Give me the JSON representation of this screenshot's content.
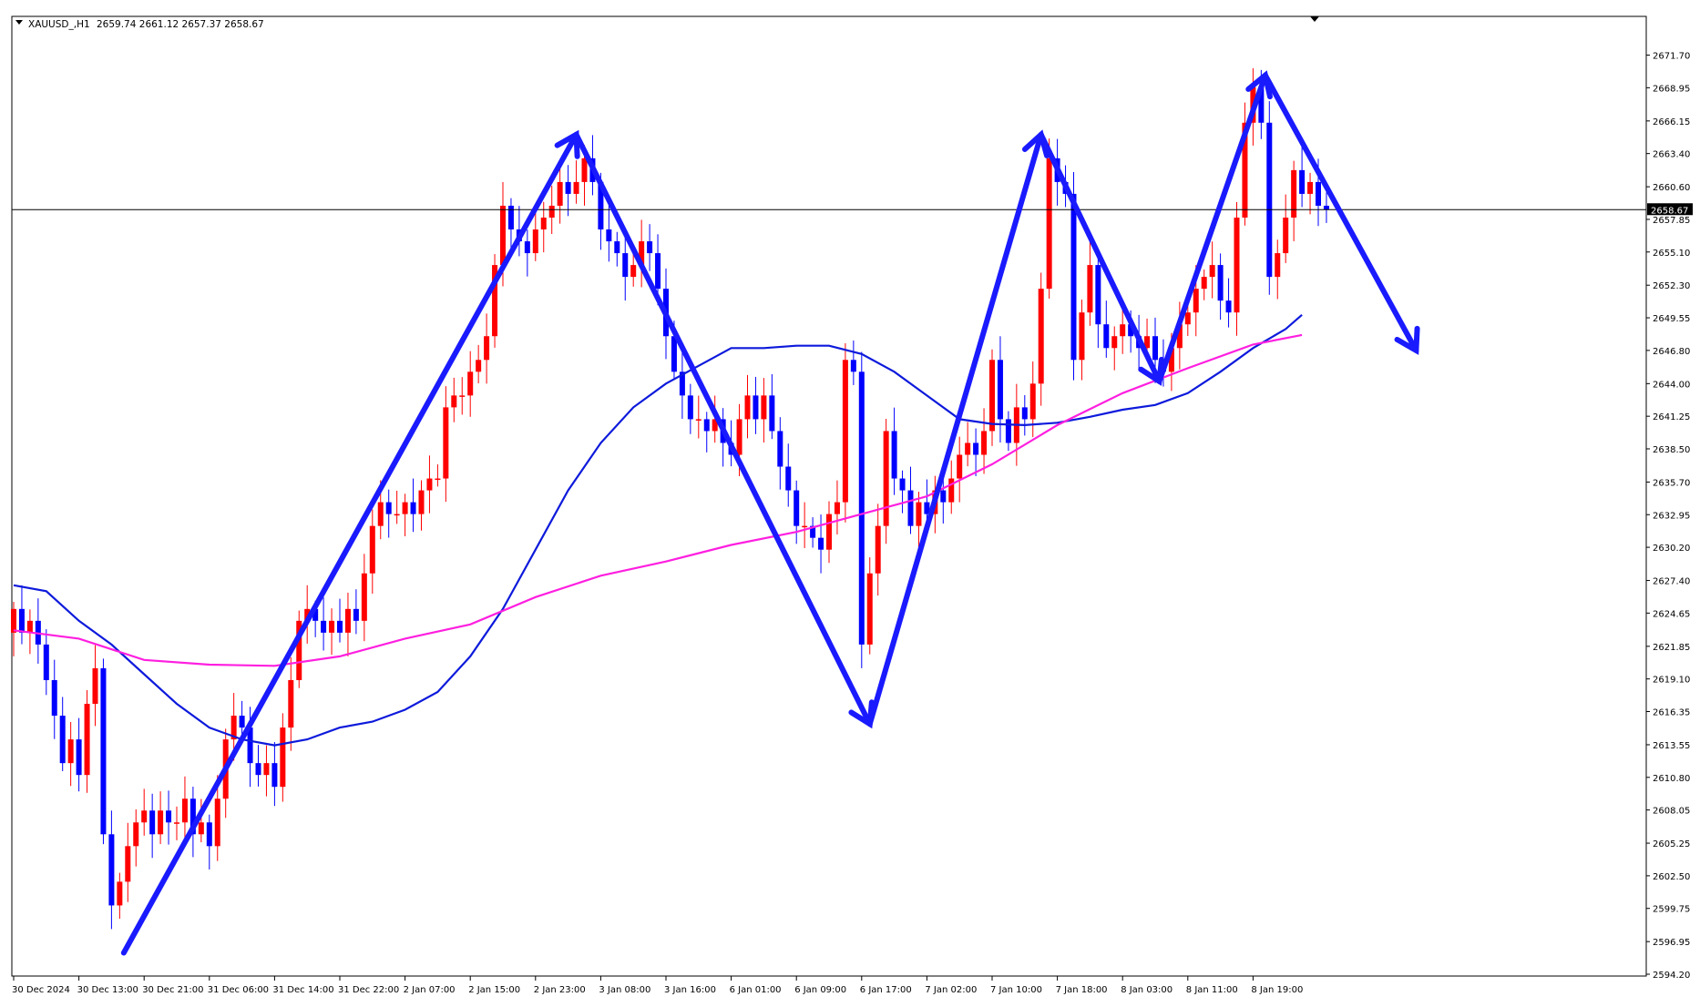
{
  "header": {
    "dropdown_icon": "triangle-down-icon",
    "symbol": "XAUUSD_,H1",
    "ohlc": "2659.74 2661.12 2657.37 2658.67"
  },
  "colors": {
    "bull": "#ff0000",
    "bear": "#0000ff",
    "ma_fast": "#0d1adb",
    "ma_slow": "#ff1fe0",
    "arrows": "#1a1aff",
    "price_line": "#000000",
    "price_box": "#000000"
  },
  "chart_data": {
    "type": "candlestick",
    "title": "",
    "ylim": [
      2594.2,
      2673.2
    ],
    "y_ticks": [
      "2671.70",
      "2668.95",
      "2666.15",
      "2663.40",
      "2660.60",
      "2657.85",
      "2655.10",
      "2652.30",
      "2649.55",
      "2646.80",
      "2644.00",
      "2641.25",
      "2638.50",
      "2635.70",
      "2632.95",
      "2630.20",
      "2627.40",
      "2624.65",
      "2621.85",
      "2619.10",
      "2616.35",
      "2613.55",
      "2610.80",
      "2608.05",
      "2605.25",
      "2602.50",
      "2599.75",
      "2596.95",
      "2594.20"
    ],
    "x_ticks": [
      {
        "bar": 0,
        "label": "30 Dec 2024"
      },
      {
        "bar": 8,
        "label": "30 Dec 13:00"
      },
      {
        "bar": 16,
        "label": "30 Dec 21:00"
      },
      {
        "bar": 24,
        "label": "31 Dec 06:00"
      },
      {
        "bar": 32,
        "label": "31 Dec 14:00"
      },
      {
        "bar": 40,
        "label": "31 Dec 22:00"
      },
      {
        "bar": 48,
        "label": "2 Jan 07:00"
      },
      {
        "bar": 56,
        "label": "2 Jan 15:00"
      },
      {
        "bar": 64,
        "label": "2 Jan 23:00"
      },
      {
        "bar": 72,
        "label": "3 Jan 08:00"
      },
      {
        "bar": 80,
        "label": "3 Jan 16:00"
      },
      {
        "bar": 88,
        "label": "6 Jan 01:00"
      },
      {
        "bar": 96,
        "label": "6 Jan 09:00"
      },
      {
        "bar": 104,
        "label": "6 Jan 17:00"
      },
      {
        "bar": 112,
        "label": "7 Jan 02:00"
      },
      {
        "bar": 120,
        "label": "7 Jan 10:00"
      },
      {
        "bar": 128,
        "label": "7 Jan 18:00"
      },
      {
        "bar": 136,
        "label": "8 Jan 03:00"
      },
      {
        "bar": 144,
        "label": "8 Jan 11:00"
      },
      {
        "bar": 152,
        "label": "8 Jan 19:00"
      }
    ],
    "current_price": 2658.67,
    "current_price_label": "2658.67",
    "closes": [
      2625,
      2623,
      2624,
      2622,
      2619,
      2616,
      2612,
      2614,
      2611,
      2617,
      2620,
      2606,
      2600,
      2602,
      2605,
      2607,
      2608,
      2606,
      2608,
      2607,
      2607,
      2609,
      2606,
      2607,
      2605,
      2609,
      2614,
      2616,
      2615,
      2612,
      2611,
      2612,
      2610,
      2615,
      2619,
      2624,
      2625,
      2624,
      2623,
      2624,
      2623,
      2625,
      2624,
      2628,
      2632,
      2634,
      2633,
      2633,
      2634,
      2633,
      2635,
      2636,
      2636,
      2642,
      2643,
      2643,
      2645,
      2646,
      2648,
      2654,
      2659,
      2657,
      2656,
      2655,
      2657,
      2658,
      2659,
      2661,
      2660,
      2661,
      2663,
      2661,
      2657,
      2656,
      2655,
      2653,
      2654,
      2656,
      2655,
      2652,
      2648,
      2645,
      2643,
      2641,
      2641,
      2640,
      2641,
      2639,
      2638,
      2641,
      2643,
      2641,
      2643,
      2640,
      2637,
      2635,
      2632,
      2632,
      2631,
      2630,
      2633,
      2634,
      2646,
      2645,
      2622,
      2628,
      2632,
      2640,
      2636,
      2635,
      2632,
      2634,
      2633,
      2635,
      2634,
      2636,
      2638,
      2639,
      2638,
      2640,
      2646,
      2641,
      2639,
      2642,
      2641,
      2644,
      2652,
      2663,
      2661,
      2660,
      2646,
      2650,
      2654,
      2649,
      2647,
      2648,
      2649,
      2648,
      2647,
      2648,
      2646,
      2645,
      2647,
      2649,
      2650,
      2652,
      2653,
      2654,
      2651,
      2650,
      2658,
      2666,
      2669,
      2666,
      2653,
      2655,
      2658,
      2662,
      2660,
      2661,
      2659,
      2658.67
    ],
    "ma_fast_points": [
      [
        0,
        2627
      ],
      [
        4,
        2626.5
      ],
      [
        8,
        2624
      ],
      [
        12,
        2622
      ],
      [
        16,
        2619.5
      ],
      [
        20,
        2617
      ],
      [
        24,
        2615
      ],
      [
        28,
        2614
      ],
      [
        32,
        2613.5
      ],
      [
        36,
        2614
      ],
      [
        40,
        2615
      ],
      [
        44,
        2615.5
      ],
      [
        48,
        2616.5
      ],
      [
        52,
        2618
      ],
      [
        56,
        2621
      ],
      [
        60,
        2625
      ],
      [
        64,
        2630
      ],
      [
        68,
        2635
      ],
      [
        72,
        2639
      ],
      [
        76,
        2642
      ],
      [
        80,
        2644
      ],
      [
        84,
        2645.5
      ],
      [
        88,
        2647
      ],
      [
        92,
        2647
      ],
      [
        96,
        2647.2
      ],
      [
        100,
        2647.2
      ],
      [
        104,
        2646.5
      ],
      [
        108,
        2645
      ],
      [
        112,
        2643
      ],
      [
        116,
        2641
      ],
      [
        120,
        2640.6
      ],
      [
        124,
        2640.5
      ],
      [
        128,
        2640.7
      ],
      [
        132,
        2641.2
      ],
      [
        136,
        2641.8
      ],
      [
        140,
        2642.2
      ],
      [
        144,
        2643.2
      ],
      [
        148,
        2645
      ],
      [
        152,
        2647
      ],
      [
        156,
        2648.6
      ],
      [
        158,
        2649.8
      ]
    ],
    "ma_slow_points": [
      [
        0,
        2623.2
      ],
      [
        8,
        2622.5
      ],
      [
        16,
        2620.7
      ],
      [
        24,
        2620.3
      ],
      [
        32,
        2620.2
      ],
      [
        40,
        2621
      ],
      [
        48,
        2622.5
      ],
      [
        56,
        2623.7
      ],
      [
        64,
        2626
      ],
      [
        72,
        2627.8
      ],
      [
        80,
        2629
      ],
      [
        88,
        2630.4
      ],
      [
        96,
        2631.5
      ],
      [
        104,
        2633
      ],
      [
        112,
        2634.5
      ],
      [
        120,
        2637.2
      ],
      [
        128,
        2640.5
      ],
      [
        136,
        2643.2
      ],
      [
        144,
        2645.3
      ],
      [
        152,
        2647.3
      ],
      [
        158,
        2648.1
      ]
    ],
    "arrow_lines": [
      {
        "from": [
          13.5,
          2596
        ],
        "to": [
          69,
          2665
        ]
      },
      {
        "from": [
          69,
          2665
        ],
        "to": [
          105,
          2615.3
        ]
      },
      {
        "from": [
          105,
          2615.3
        ],
        "to": [
          126,
          2665
        ]
      },
      {
        "from": [
          126,
          2665
        ],
        "to": [
          140.5,
          2644.2
        ]
      },
      {
        "from": [
          140.5,
          2644.2
        ],
        "to": [
          153.5,
          2670
        ]
      },
      {
        "from": [
          153.5,
          2670
        ],
        "to": [
          172,
          2646.8
        ]
      }
    ]
  }
}
